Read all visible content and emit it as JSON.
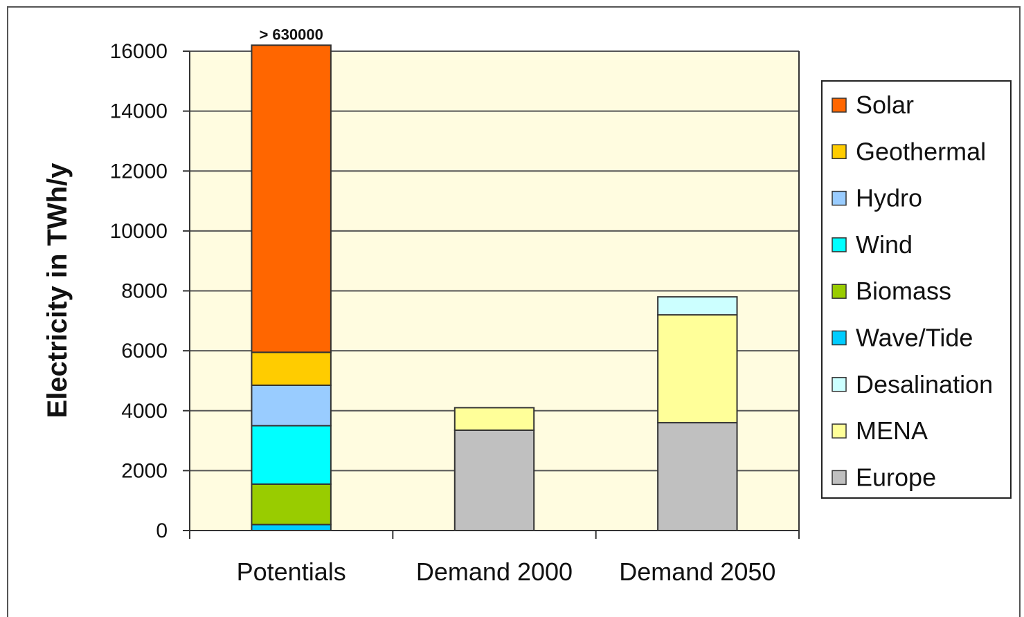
{
  "chart_data": {
    "type": "bar",
    "stacked": true,
    "ylabel": "Electricity in TWh/y",
    "xlabel": "",
    "ylim": [
      0,
      16000
    ],
    "yticks": [
      "0",
      "2000",
      "4000",
      "6000",
      "8000",
      "10000",
      "12000",
      "14000",
      "16000"
    ],
    "grid": true,
    "legend_position": "right",
    "categories": [
      "Potentials",
      "Demand 2000",
      "Demand 2050"
    ],
    "series": [
      {
        "name": "Wave/Tide",
        "color": "#00CCFF",
        "values": [
          200,
          0,
          0
        ]
      },
      {
        "name": "Biomass",
        "color": "#99CC00",
        "values": [
          1350,
          0,
          0
        ]
      },
      {
        "name": "Wind",
        "color": "#00FFFF",
        "values": [
          1950,
          0,
          0
        ]
      },
      {
        "name": "Hydro",
        "color": "#99CCFF",
        "values": [
          1350,
          0,
          0
        ]
      },
      {
        "name": "Geothermal",
        "color": "#FFCC00",
        "values": [
          1100,
          0,
          0
        ]
      },
      {
        "name": "Solar",
        "color": "#FF6600",
        "values": [
          10250,
          0,
          0
        ]
      },
      {
        "name": "Europe",
        "color": "#C0C0C0",
        "values": [
          0,
          3350,
          3600
        ]
      },
      {
        "name": "MENA",
        "color": "#FFFF99",
        "values": [
          0,
          750,
          3600
        ]
      },
      {
        "name": "Desalination",
        "color": "#CCFFFF",
        "values": [
          0,
          0,
          600
        ]
      }
    ],
    "legend_order": [
      "Solar",
      "Geothermal",
      "Hydro",
      "Wind",
      "Biomass",
      "Wave/Tide",
      "Desalination",
      "MENA",
      "Europe"
    ],
    "annotations": [
      {
        "category": "Potentials",
        "text": "> 630000"
      }
    ],
    "plot_background": "#FFFCE0"
  }
}
